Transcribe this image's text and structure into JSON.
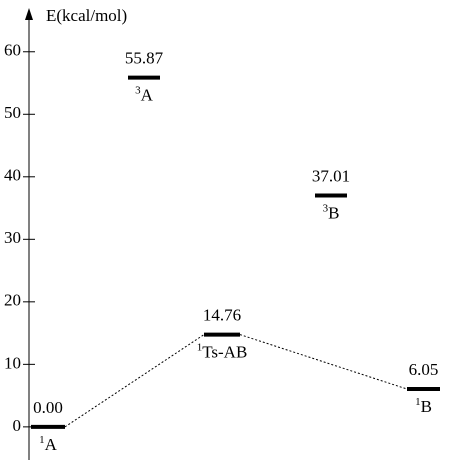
{
  "chart_data": {
    "type": "energy-levels",
    "y_label": "E(kcal/mol)",
    "categories": [
      {
        "sup": "1",
        "name": "A"
      },
      {
        "sup": "3",
        "name": "A"
      },
      {
        "sup": "1",
        "name": "Ts-AB"
      },
      {
        "sup": "3",
        "name": "B"
      },
      {
        "sup": "1",
        "name": "B"
      }
    ],
    "values": [
      0,
      55.87,
      14.76,
      37.01,
      6.05
    ],
    "value_labels": [
      "0.00",
      "55.87",
      "14.76",
      "37.01",
      "6.05"
    ],
    "pathway": [
      0,
      2,
      4
    ],
    "color": "#000000",
    "ylim": [
      -5.3,
      67
    ],
    "yticks": [
      0,
      10,
      20,
      30,
      40,
      50,
      60
    ]
  }
}
